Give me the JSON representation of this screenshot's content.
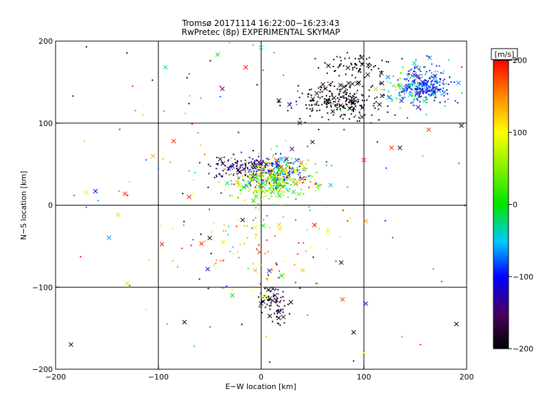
{
  "chart_data": {
    "type": "scatter",
    "title": "Tromsø 20171114 16:22:00−16:23:43",
    "subtitle": "RwPretec (8p) EXPERIMENTAL SKYMAP",
    "xlabel": "E−W location [km]",
    "ylabel": "N−S location [km]",
    "xlim": [
      -200,
      200
    ],
    "ylim": [
      -200,
      200
    ],
    "xticks": [
      -200,
      -100,
      0,
      100,
      200
    ],
    "yticks": [
      -200,
      -100,
      0,
      100,
      200
    ],
    "grid": true,
    "colorbar": {
      "label": "[m/s]",
      "range": [
        -200,
        200
      ],
      "ticks": [
        200,
        100,
        0,
        -100,
        -200
      ],
      "colormap": "black-purple-blue-cyan-green-yellow-red"
    },
    "marker_types": [
      "dot",
      "cross"
    ],
    "clusters": [
      {
        "cx": 12,
        "cy": 38,
        "sx": 18,
        "sy": 10,
        "n": 380,
        "vmean": 20,
        "vspread": 110
      },
      {
        "cx": -18,
        "cy": 48,
        "sx": 14,
        "sy": 6,
        "n": 110,
        "vmean": -140,
        "vspread": 40
      },
      {
        "cx": 5,
        "cy": 22,
        "sx": 18,
        "sy": 10,
        "n": 130,
        "vmean": 30,
        "vspread": 45
      },
      {
        "cx": 75,
        "cy": 128,
        "sx": 22,
        "sy": 12,
        "n": 230,
        "vmean": -195,
        "vspread": 10
      },
      {
        "cx": 92,
        "cy": 170,
        "sx": 14,
        "sy": 8,
        "n": 70,
        "vmean": -195,
        "vspread": 10
      },
      {
        "cx": 160,
        "cy": 145,
        "sx": 12,
        "sy": 12,
        "n": 260,
        "vmean": -90,
        "vspread": 35
      },
      {
        "cx": 135,
        "cy": 140,
        "sx": 10,
        "sy": 10,
        "n": 50,
        "vmean": 0,
        "vspread": 70
      },
      {
        "cx": 12,
        "cy": -120,
        "sx": 8,
        "sy": 12,
        "n": 70,
        "vmean": -185,
        "vspread": 25
      },
      {
        "cx": 0,
        "cy": -40,
        "sx": 40,
        "sy": 45,
        "n": 90,
        "vmean": 150,
        "vspread": 50
      },
      {
        "cx": 0,
        "cy": 40,
        "sx": 110,
        "sy": 100,
        "n": 160,
        "vmean": 0,
        "vspread": 180
      }
    ],
    "points": [
      {
        "x": -185,
        "y": -170,
        "v": -200,
        "m": "cross"
      },
      {
        "x": 190,
        "y": -145,
        "v": -200,
        "m": "cross"
      },
      {
        "x": 90,
        "y": -155,
        "v": -200,
        "m": "cross"
      },
      {
        "x": 100,
        "y": -180,
        "v": 100,
        "m": "cross"
      },
      {
        "x": 102,
        "y": -120,
        "v": -120,
        "m": "cross"
      },
      {
        "x": 78,
        "y": -70,
        "v": -200,
        "m": "cross"
      },
      {
        "x": -93,
        "y": 168,
        "v": -30,
        "m": "cross"
      },
      {
        "x": -15,
        "y": 168,
        "v": 200,
        "m": "cross"
      },
      {
        "x": 0,
        "y": 192,
        "v": -40,
        "m": "cross"
      },
      {
        "x": 195,
        "y": 97,
        "v": -200,
        "m": "cross"
      },
      {
        "x": 127,
        "y": 70,
        "v": 190,
        "m": "cross"
      },
      {
        "x": 135,
        "y": 70,
        "v": -200,
        "m": "cross"
      },
      {
        "x": 163,
        "y": 92,
        "v": 190,
        "m": "cross"
      },
      {
        "x": -85,
        "y": 78,
        "v": 190,
        "m": "cross"
      },
      {
        "x": -70,
        "y": 10,
        "v": 190,
        "m": "cross"
      },
      {
        "x": -58,
        "y": -47,
        "v": 190,
        "m": "cross"
      },
      {
        "x": -50,
        "y": -40,
        "v": -200,
        "m": "cross"
      },
      {
        "x": -37,
        "y": -45,
        "v": 110,
        "m": "cross"
      },
      {
        "x": -52,
        "y": -78,
        "v": -120,
        "m": "cross"
      },
      {
        "x": -28,
        "y": -110,
        "v": 0,
        "m": "cross"
      },
      {
        "x": -18,
        "y": -18,
        "v": -200,
        "m": "cross"
      },
      {
        "x": 2,
        "y": -25,
        "v": 0,
        "m": "cross"
      },
      {
        "x": 0,
        "y": -120,
        "v": -200,
        "m": "cross"
      },
      {
        "x": 8,
        "y": -80,
        "v": -120,
        "m": "cross"
      },
      {
        "x": 20,
        "y": -86,
        "v": 0,
        "m": "cross"
      },
      {
        "x": 50,
        "y": 77,
        "v": -200,
        "m": "cross"
      },
      {
        "x": 100,
        "y": 55,
        "v": 190,
        "m": "cross"
      },
      {
        "x": -75,
        "y": -20,
        "v": -200,
        "m": "dot"
      },
      {
        "x": -128,
        "y": 28,
        "v": 60,
        "m": "dot"
      },
      {
        "x": -128,
        "y": -98,
        "v": 190,
        "m": "dot"
      },
      {
        "x": -183,
        "y": 133,
        "v": -200,
        "m": "dot"
      },
      {
        "x": -170,
        "y": 193,
        "v": -200,
        "m": "dot"
      },
      {
        "x": -125,
        "y": 145,
        "v": 190,
        "m": "dot"
      },
      {
        "x": -115,
        "y": 110,
        "v": 60,
        "m": "dot"
      },
      {
        "x": -65,
        "y": -172,
        "v": 0,
        "m": "dot"
      },
      {
        "x": 90,
        "y": -190,
        "v": -120,
        "m": "dot"
      },
      {
        "x": 155,
        "y": -170,
        "v": 190,
        "m": "dot"
      },
      {
        "x": -40,
        "y": 145,
        "v": 190,
        "m": "dot"
      },
      {
        "x": -70,
        "y": 160,
        "v": 190,
        "m": "dot"
      },
      {
        "x": 65,
        "y": 150,
        "v": 190,
        "m": "dot"
      }
    ]
  }
}
